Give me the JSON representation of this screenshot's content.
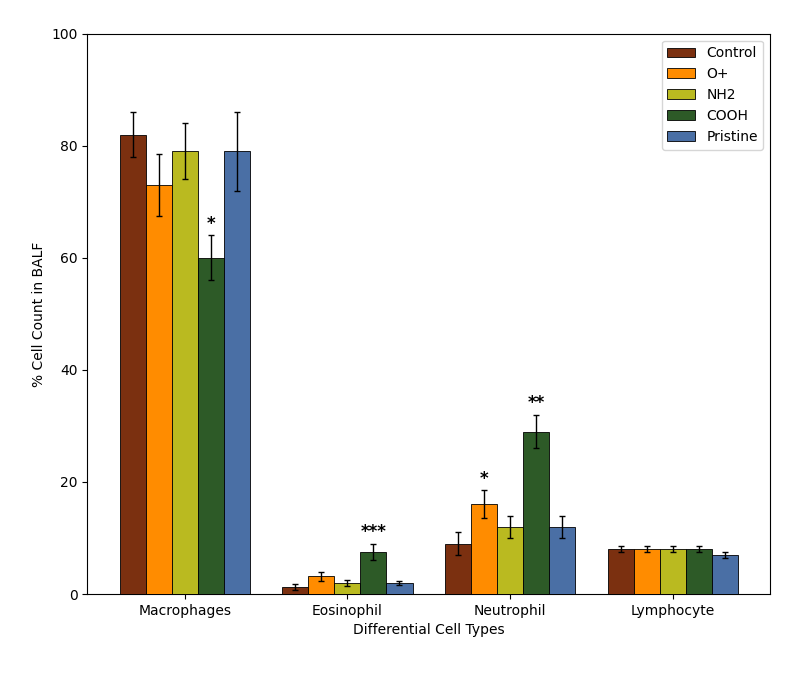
{
  "chart_data": {
    "type": "bar",
    "categories": [
      "Macrophages",
      "Eosinophil",
      "Neutrophil",
      "Lymphocyte"
    ],
    "series": [
      {
        "name": "Control",
        "color": "#7B3010",
        "values": [
          82,
          1.2,
          9.0,
          8.0
        ],
        "errors": [
          4.0,
          0.5,
          2.0,
          0.5
        ]
      },
      {
        "name": "O+",
        "color": "#FF8C00",
        "values": [
          73,
          3.2,
          16.0,
          8.0
        ],
        "errors": [
          5.5,
          0.8,
          2.5,
          0.5
        ]
      },
      {
        "name": "NH2",
        "color": "#BABA20",
        "values": [
          79,
          2.0,
          12.0,
          8.0
        ],
        "errors": [
          5.0,
          0.5,
          2.0,
          0.5
        ]
      },
      {
        "name": "COOH",
        "color": "#2D5A27",
        "values": [
          60,
          7.5,
          29.0,
          8.0
        ],
        "errors": [
          4.0,
          1.5,
          3.0,
          0.5
        ]
      },
      {
        "name": "Pristine",
        "color": "#4A6FA5",
        "values": [
          79,
          2.0,
          12.0,
          7.0
        ],
        "errors": [
          7.0,
          0.4,
          2.0,
          0.5
        ]
      }
    ],
    "annotations": [
      {
        "category": "Macrophages",
        "series": "COOH",
        "text": "*"
      },
      {
        "category": "Eosinophil",
        "series": "COOH",
        "text": "***"
      },
      {
        "category": "Neutrophil",
        "series": "O+",
        "text": "*"
      },
      {
        "category": "Neutrophil",
        "series": "COOH",
        "text": "**"
      }
    ],
    "xlabel": "Differential Cell Types",
    "ylabel": "% Cell Count in BALF",
    "ylim": [
      0,
      100
    ],
    "yticks": [
      0,
      20,
      40,
      60,
      80,
      100
    ],
    "legend": "upper right"
  }
}
